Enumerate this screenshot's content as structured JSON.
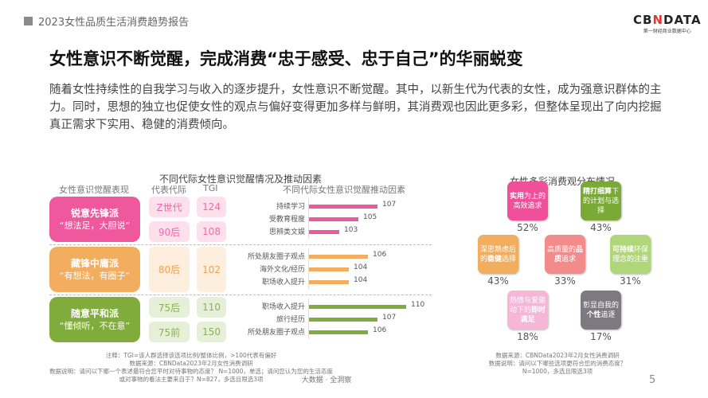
{
  "header": {
    "report_title": "2023女性品质生活消费趋势报告",
    "logo_main": "CBNDATA",
    "logo_sub": "第一财经商业数据中心"
  },
  "title": "女性意识不断觉醒，完成消费“忠于感受、忠于自己”的华丽蜕变",
  "paragraph": "随着女性持续性的自我学习与收入的逐步提升，女性意识不断觉醒。其中，以新生代为代表的女性，成为强意识群体的主力。同时，思想的独立也促使女性的观点与偏好变得更加多样与鲜明，其消费观也因此更多彩，但整体呈现出了向内挖掘真正需求下实用、稳健的消费倾向。",
  "left": {
    "title": "不同代际女性意识觉醒情况及推动因素",
    "col_headers": [
      "女性意识觉醒表现",
      "代表代际",
      "TGI",
      "不同代际女性意识觉醒推动因素"
    ],
    "groups": [
      {
        "name": "锐意先锋派",
        "quote": "“想法足，大胆说”",
        "color": "#f0589e",
        "light": "#fde0ec",
        "text": "#f06aa8",
        "gens": [
          {
            "gen": "Z世代",
            "tgi": "124"
          },
          {
            "gen": "90后",
            "tgi": "108"
          }
        ],
        "factors": [
          {
            "label": "持续学习",
            "value": 107
          },
          {
            "label": "受教育程度",
            "value": 105
          },
          {
            "label": "思辨类文娱",
            "value": 103
          }
        ]
      },
      {
        "name": "藏锋中庸派",
        "quote": "“有想法，有圈子”",
        "color": "#f2ad5e",
        "light": "#fdeedd",
        "text": "#eea250",
        "gens": [
          {
            "gen": "80后",
            "tgi": "102"
          }
        ],
        "factors": [
          {
            "label": "所处朋友圈子观点",
            "value": 106
          },
          {
            "label": "海外文化/经历",
            "value": 104
          },
          {
            "label": "职场收入提升",
            "value": 104
          }
        ]
      },
      {
        "name": "随意平和派",
        "quote": "“懂倾听，不在意”",
        "color": "#7fac3a",
        "light": "#e6f0d8",
        "text": "#8cb04e",
        "gens": [
          {
            "gen": "75后",
            "tgi": "110"
          },
          {
            "gen": "75前",
            "tgi": "150"
          }
        ],
        "factors": [
          {
            "label": "职场收入提升",
            "value": 110
          },
          {
            "label": "旅行经历",
            "value": 107
          },
          {
            "label": "所处朋友圈子观点",
            "value": 106
          }
        ]
      }
    ],
    "notes": [
      "注释：TGI=该人群选择该选项比例/整体比例，>100代表有偏好",
      "数据来源：CBNData2023年2月女性消费调研",
      "数据说明：请问以下哪一个表述最符合您平时对待事物的态度？ N=1000，单选；请问您认为您的生活态度或对事物的看法主要来自于？N=827，多选且限选3项"
    ],
    "watermark": "大数据 · 全洞察"
  },
  "right": {
    "title": "女性多彩消费观分布情况",
    "tiles": [
      {
        "pre": "",
        "bold": "实用",
        "post": "为上的高效追求",
        "pct": "52%",
        "color": "#f0509a"
      },
      {
        "pre": "",
        "bold": "精打细算",
        "post": "下的计划与选择",
        "pct": "43%",
        "color": "#7aa935"
      },
      {
        "pre": "深思熟虑后的",
        "bold": "稳健",
        "post": "选择",
        "pct": "43%",
        "color": "#f2ad5e"
      },
      {
        "pre": "高质量的",
        "bold": "品质",
        "post": "追求",
        "pct": "33%",
        "color": "#f38b8b"
      },
      {
        "pre": "",
        "bold": "可持续",
        "post": "环保理念的注重",
        "pct": "31%",
        "color": "#b0d67a"
      },
      {
        "pre": "热情与爱驱动下的",
        "bold": "即时满足",
        "post": "",
        "pct": "18%",
        "color": "#f6b6d8"
      },
      {
        "pre": "彰显自我的",
        "bold": "个性",
        "post": "追逐",
        "pct": "17%",
        "color": "#7e7880"
      }
    ],
    "notes": [
      "数据来源：CBNData2023年2月女性消费调研",
      "数据说明：请问以下哪些选项更符合您的消费态度？",
      "N=1000，多选且限选3项"
    ]
  },
  "page_number": "5"
}
